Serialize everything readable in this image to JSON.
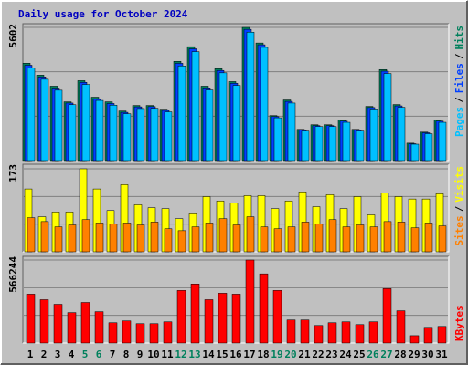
{
  "chart_data": [
    {
      "type": "bar",
      "title": "Daily usage for October 2024",
      "series": [
        {
          "name": "Hits",
          "color": "#00805c",
          "values": [
            4095,
            3593,
            3129,
            2472,
            3361,
            2666,
            2472,
            2086,
            2318,
            2318,
            2163,
            4172,
            4790,
            3129,
            3863,
            3322,
            5602,
            4945,
            1893,
            2550,
            1313,
            1507,
            1507,
            1700,
            1313,
            2279,
            3825,
            2357,
            734,
            1198,
            1700
          ]
        },
        {
          "name": "Files",
          "color": "#0040ff",
          "values": [
            4010,
            3520,
            3050,
            2420,
            3290,
            2600,
            2400,
            2030,
            2260,
            2270,
            2110,
            4090,
            4700,
            3060,
            3790,
            3250,
            5520,
            4870,
            1850,
            2490,
            1280,
            1470,
            1470,
            1660,
            1280,
            2230,
            3760,
            2300,
            710,
            1170,
            1660
          ]
        },
        {
          "name": "Pages",
          "color": "#00c0ff",
          "values": [
            3900,
            3420,
            2960,
            2350,
            3200,
            2530,
            2330,
            1970,
            2190,
            2200,
            2050,
            3980,
            4580,
            2970,
            3690,
            3160,
            5400,
            4760,
            1800,
            2420,
            1240,
            1430,
            1430,
            1610,
            1240,
            2170,
            3660,
            2240,
            690,
            1130,
            1610
          ]
        }
      ],
      "legend_separator": "/",
      "ylim": [
        0,
        5602
      ],
      "yticks": [
        5602
      ],
      "grid_divisions": 3
    },
    {
      "type": "bar",
      "series": [
        {
          "name": "Visits",
          "color": "#ffff00",
          "values": [
            131,
            73,
            83,
            83,
            173,
            131,
            86,
            140,
            98,
            92,
            90,
            69,
            81,
            115,
            106,
            102,
            117,
            117,
            90,
            106,
            125,
            94,
            119,
            90,
            115,
            77,
            123,
            115,
            110,
            110,
            121
          ]
        },
        {
          "name": "Sites",
          "color": "#ff8000",
          "values": [
            71,
            63,
            52,
            56,
            67,
            60,
            58,
            60,
            56,
            62,
            48,
            44,
            52,
            60,
            69,
            56,
            73,
            52,
            48,
            52,
            62,
            58,
            67,
            52,
            56,
            52,
            63,
            62,
            50,
            60,
            54
          ]
        }
      ],
      "legend_separator": "/",
      "ylim": [
        0,
        173
      ],
      "yticks": [
        173
      ],
      "grid_divisions": 3
    },
    {
      "type": "bar",
      "categories": [
        "1",
        "2",
        "3",
        "4",
        "5",
        "6",
        "7",
        "8",
        "9",
        "10",
        "11",
        "12",
        "13",
        "14",
        "15",
        "16",
        "17",
        "18",
        "19",
        "20",
        "21",
        "22",
        "23",
        "24",
        "25",
        "26",
        "27",
        "28",
        "29",
        "30",
        "31"
      ],
      "category_colors": [
        "#000000",
        "#000000",
        "#000000",
        "#000000",
        "#00805c",
        "#00805c",
        "#000000",
        "#000000",
        "#000000",
        "#000000",
        "#000000",
        "#00805c",
        "#00805c",
        "#000000",
        "#000000",
        "#000000",
        "#000000",
        "#000000",
        "#00805c",
        "#00805c",
        "#000000",
        "#000000",
        "#000000",
        "#000000",
        "#000000",
        "#00805c",
        "#00805c",
        "#000000",
        "#000000",
        "#000000",
        "#000000"
      ],
      "series": [
        {
          "name": "KBytes",
          "color": "#ff0000",
          "values": [
            333500,
            295700,
            264300,
            207600,
            276800,
            213900,
            138400,
            151000,
            132100,
            132100,
            144700,
            358600,
            402700,
            295700,
            339800,
            333500,
            566244,
            471900,
            358600,
            157300,
            157300,
            119600,
            138400,
            144700,
            125800,
            144700,
            371200,
            220200,
            50300,
            107000,
            113300
          ]
        }
      ],
      "ylim": [
        0,
        566244
      ],
      "yticks": [
        566244
      ],
      "grid_divisions": 3
    }
  ]
}
